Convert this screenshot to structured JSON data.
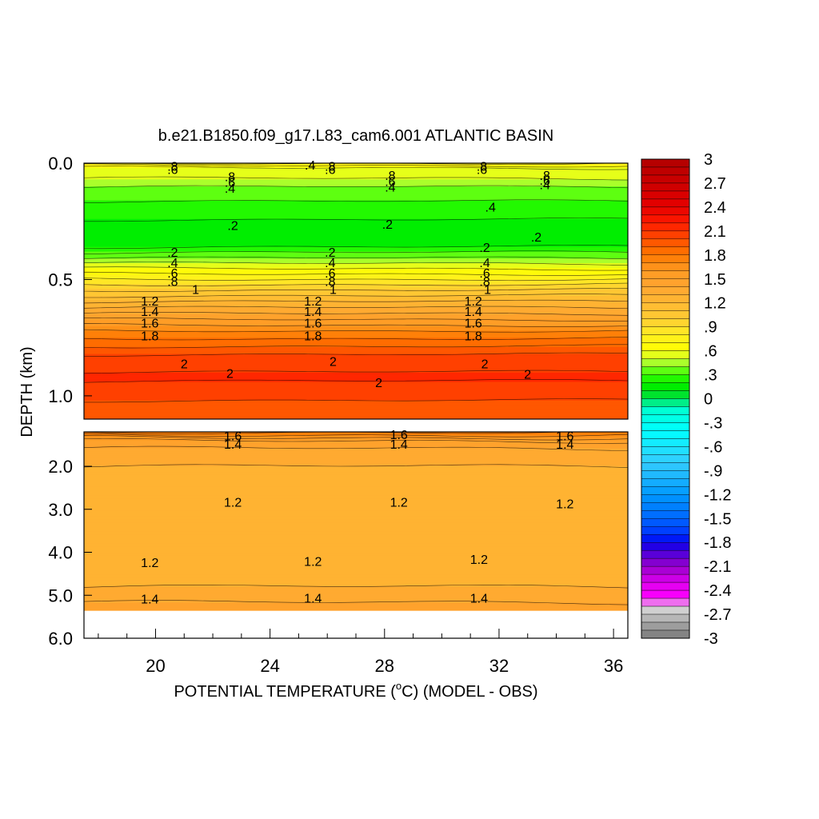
{
  "chart_data": {
    "type": "heatmap",
    "title": "b.e21.B1850.f09_g17.L83_cam6.001 ATLANTIC BASIN",
    "xlabel_prefix": "POTENTIAL TEMPERATURE (",
    "xlabel_degree": "o",
    "xlabel_suffix": "C) (MODEL - OBS)",
    "ylabel": "DEPTH (km)",
    "xlim": [
      17.5,
      36.5
    ],
    "x_ticks": [
      20,
      24,
      28,
      32,
      36
    ],
    "x_tick_labels": [
      "20",
      "24",
      "28",
      "32",
      "36"
    ],
    "upper_panel": {
      "ylim": [
        0.0,
        1.1
      ],
      "y_ticks": [
        0.0,
        0.5,
        1.0
      ],
      "y_tick_labels": [
        "0.0",
        "0.5",
        "1.0"
      ]
    },
    "lower_panel": {
      "ylim": [
        1.2,
        6.0
      ],
      "y_ticks": [
        2.0,
        3.0,
        4.0,
        5.0,
        6.0
      ],
      "y_tick_labels": [
        "2.0",
        "3.0",
        "4.0",
        "5.0",
        "6.0"
      ],
      "data_bottom_km": 5.35
    },
    "profile": [
      {
        "depth": 0.0,
        "value": 0.8
      },
      {
        "depth": 0.02,
        "value": 0.6
      },
      {
        "depth": 0.05,
        "value": 0.55
      },
      {
        "depth": 0.09,
        "value": 0.42
      },
      {
        "depth": 0.15,
        "value": 0.32
      },
      {
        "depth": 0.22,
        "value": 0.22
      },
      {
        "depth": 0.3,
        "value": 0.15
      },
      {
        "depth": 0.36,
        "value": 0.2
      },
      {
        "depth": 0.42,
        "value": 0.45
      },
      {
        "depth": 0.48,
        "value": 0.72
      },
      {
        "depth": 0.54,
        "value": 0.98
      },
      {
        "depth": 0.6,
        "value": 1.22
      },
      {
        "depth": 0.66,
        "value": 1.45
      },
      {
        "depth": 0.72,
        "value": 1.7
      },
      {
        "depth": 0.78,
        "value": 1.88
      },
      {
        "depth": 0.84,
        "value": 2.05
      },
      {
        "depth": 0.92,
        "value": 2.12
      },
      {
        "depth": 1.0,
        "value": 2.02
      },
      {
        "depth": 1.1,
        "value": 1.92
      },
      {
        "depth": 1.22,
        "value": 1.78
      },
      {
        "depth": 1.32,
        "value": 1.62
      },
      {
        "depth": 1.45,
        "value": 1.45
      },
      {
        "depth": 1.8,
        "value": 1.32
      },
      {
        "depth": 2.8,
        "value": 1.22
      },
      {
        "depth": 4.2,
        "value": 1.2
      },
      {
        "depth": 4.8,
        "value": 1.3
      },
      {
        "depth": 5.35,
        "value": 1.45
      }
    ],
    "contour_labels": [
      {
        "text": ".8",
        "x": 20.6,
        "depth": 0.015,
        "panel": "upper"
      },
      {
        "text": ".6",
        "x": 20.6,
        "depth": 0.03,
        "panel": "upper"
      },
      {
        "text": ".4",
        "x": 25.4,
        "depth": 0.01,
        "panel": "upper"
      },
      {
        "text": ".8",
        "x": 26.1,
        "depth": 0.015,
        "panel": "upper"
      },
      {
        "text": ".6",
        "x": 26.1,
        "depth": 0.03,
        "panel": "upper"
      },
      {
        "text": ".8",
        "x": 31.4,
        "depth": 0.015,
        "panel": "upper"
      },
      {
        "text": ".6",
        "x": 31.4,
        "depth": 0.03,
        "panel": "upper"
      },
      {
        "text": ".8",
        "x": 22.6,
        "depth": 0.06,
        "panel": "upper"
      },
      {
        "text": ".6",
        "x": 22.6,
        "depth": 0.085,
        "panel": "upper"
      },
      {
        "text": ".4",
        "x": 22.6,
        "depth": 0.11,
        "panel": "upper"
      },
      {
        "text": ".8",
        "x": 28.2,
        "depth": 0.055,
        "panel": "upper"
      },
      {
        "text": ".6",
        "x": 28.2,
        "depth": 0.08,
        "panel": "upper"
      },
      {
        "text": ".4",
        "x": 28.2,
        "depth": 0.105,
        "panel": "upper"
      },
      {
        "text": ".8",
        "x": 33.6,
        "depth": 0.055,
        "panel": "upper"
      },
      {
        "text": ".6",
        "x": 33.6,
        "depth": 0.075,
        "panel": "upper"
      },
      {
        "text": ".4",
        "x": 33.6,
        "depth": 0.095,
        "panel": "upper"
      },
      {
        "text": ".4",
        "x": 31.7,
        "depth": 0.19,
        "panel": "upper"
      },
      {
        "text": ".2",
        "x": 22.7,
        "depth": 0.27,
        "panel": "upper"
      },
      {
        "text": ".2",
        "x": 28.1,
        "depth": 0.265,
        "panel": "upper"
      },
      {
        "text": ".2",
        "x": 33.3,
        "depth": 0.32,
        "panel": "upper"
      },
      {
        "text": ".2",
        "x": 20.6,
        "depth": 0.385,
        "panel": "upper"
      },
      {
        "text": ".2",
        "x": 26.1,
        "depth": 0.385,
        "panel": "upper"
      },
      {
        "text": ".2",
        "x": 31.5,
        "depth": 0.365,
        "panel": "upper"
      },
      {
        "text": ".4",
        "x": 20.6,
        "depth": 0.43,
        "panel": "upper"
      },
      {
        "text": ".4",
        "x": 26.1,
        "depth": 0.43,
        "panel": "upper"
      },
      {
        "text": ".4",
        "x": 31.5,
        "depth": 0.43,
        "panel": "upper"
      },
      {
        "text": ".6",
        "x": 20.6,
        "depth": 0.475,
        "panel": "upper"
      },
      {
        "text": ".6",
        "x": 26.1,
        "depth": 0.475,
        "panel": "upper"
      },
      {
        "text": ".6",
        "x": 31.5,
        "depth": 0.475,
        "panel": "upper"
      },
      {
        "text": ".8",
        "x": 20.6,
        "depth": 0.51,
        "panel": "upper"
      },
      {
        "text": ".8",
        "x": 26.1,
        "depth": 0.51,
        "panel": "upper"
      },
      {
        "text": ".8",
        "x": 31.5,
        "depth": 0.51,
        "panel": "upper"
      },
      {
        "text": "1",
        "x": 21.4,
        "depth": 0.545,
        "panel": "upper"
      },
      {
        "text": "1",
        "x": 26.2,
        "depth": 0.545,
        "panel": "upper"
      },
      {
        "text": "1",
        "x": 31.6,
        "depth": 0.545,
        "panel": "upper"
      },
      {
        "text": "1.2",
        "x": 19.8,
        "depth": 0.595,
        "panel": "upper"
      },
      {
        "text": "1.2",
        "x": 25.5,
        "depth": 0.595,
        "panel": "upper"
      },
      {
        "text": "1.2",
        "x": 31.1,
        "depth": 0.595,
        "panel": "upper"
      },
      {
        "text": "1.4",
        "x": 19.8,
        "depth": 0.64,
        "panel": "upper"
      },
      {
        "text": "1.4",
        "x": 25.5,
        "depth": 0.64,
        "panel": "upper"
      },
      {
        "text": "1.4",
        "x": 31.1,
        "depth": 0.64,
        "panel": "upper"
      },
      {
        "text": "1.6",
        "x": 19.8,
        "depth": 0.69,
        "panel": "upper"
      },
      {
        "text": "1.6",
        "x": 25.5,
        "depth": 0.69,
        "panel": "upper"
      },
      {
        "text": "1.6",
        "x": 31.1,
        "depth": 0.69,
        "panel": "upper"
      },
      {
        "text": "1.8",
        "x": 19.8,
        "depth": 0.745,
        "panel": "upper"
      },
      {
        "text": "1.8",
        "x": 25.5,
        "depth": 0.745,
        "panel": "upper"
      },
      {
        "text": "1.8",
        "x": 31.1,
        "depth": 0.745,
        "panel": "upper"
      },
      {
        "text": "2",
        "x": 21.0,
        "depth": 0.865,
        "panel": "upper"
      },
      {
        "text": "2",
        "x": 22.6,
        "depth": 0.905,
        "panel": "upper"
      },
      {
        "text": "2",
        "x": 26.2,
        "depth": 0.855,
        "panel": "upper"
      },
      {
        "text": "2",
        "x": 27.8,
        "depth": 0.945,
        "panel": "upper"
      },
      {
        "text": "2",
        "x": 31.5,
        "depth": 0.865,
        "panel": "upper"
      },
      {
        "text": "2",
        "x": 33.0,
        "depth": 0.91,
        "panel": "upper"
      },
      {
        "text": "1.6",
        "x": 22.7,
        "depth": 1.3,
        "panel": "lower"
      },
      {
        "text": "1.4",
        "x": 22.7,
        "depth": 1.5,
        "panel": "lower"
      },
      {
        "text": "1.6",
        "x": 28.5,
        "depth": 1.27,
        "panel": "lower"
      },
      {
        "text": "1.4",
        "x": 28.5,
        "depth": 1.5,
        "panel": "lower"
      },
      {
        "text": "1.6",
        "x": 34.3,
        "depth": 1.3,
        "panel": "lower"
      },
      {
        "text": "1.4",
        "x": 34.3,
        "depth": 1.5,
        "panel": "lower"
      },
      {
        "text": "1.2",
        "x": 22.7,
        "depth": 2.85,
        "panel": "lower"
      },
      {
        "text": "1.2",
        "x": 28.5,
        "depth": 2.85,
        "panel": "lower"
      },
      {
        "text": "1.2",
        "x": 34.3,
        "depth": 2.88,
        "panel": "lower"
      },
      {
        "text": "1.2",
        "x": 19.8,
        "depth": 4.25,
        "panel": "lower"
      },
      {
        "text": "1.2",
        "x": 25.5,
        "depth": 4.22,
        "panel": "lower"
      },
      {
        "text": "1.2",
        "x": 31.3,
        "depth": 4.18,
        "panel": "lower"
      },
      {
        "text": "1.4",
        "x": 19.8,
        "depth": 5.1,
        "panel": "lower"
      },
      {
        "text": "1.4",
        "x": 25.5,
        "depth": 5.08,
        "panel": "lower"
      },
      {
        "text": "1.4",
        "x": 31.3,
        "depth": 5.08,
        "panel": "lower"
      }
    ],
    "colorbar": {
      "min": -3,
      "max": 3,
      "step": 0.1,
      "tick_values": [
        3,
        2.7,
        2.4,
        2.1,
        1.8,
        1.5,
        1.2,
        0.9,
        0.6,
        0.3,
        0,
        -0.3,
        -0.6,
        -0.9,
        -1.2,
        -1.5,
        -1.8,
        -2.1,
        -2.4,
        -2.7,
        -3
      ],
      "tick_labels": [
        "3",
        "2.7",
        "2.4",
        "2.1",
        "1.8",
        "1.5",
        "1.2",
        ".9",
        ".6",
        ".3",
        "0",
        "-.3",
        "-.6",
        "-.9",
        "-1.2",
        "-1.5",
        "-1.8",
        "-2.1",
        "-2.4",
        "-2.7",
        "-3"
      ],
      "color_stops": [
        {
          "v": 3.0,
          "c": "#b20000"
        },
        {
          "v": 2.7,
          "c": "#cc0000"
        },
        {
          "v": 2.4,
          "c": "#e60000"
        },
        {
          "v": 2.2,
          "c": "#ff1a00"
        },
        {
          "v": 2.0,
          "c": "#ff4d00"
        },
        {
          "v": 1.8,
          "c": "#ff7700"
        },
        {
          "v": 1.6,
          "c": "#ff9a22"
        },
        {
          "v": 1.4,
          "c": "#ffa530"
        },
        {
          "v": 1.2,
          "c": "#ffb833"
        },
        {
          "v": 1.0,
          "c": "#ffcc33"
        },
        {
          "v": 0.8,
          "c": "#ffee22"
        },
        {
          "v": 0.6,
          "c": "#ffff00"
        },
        {
          "v": 0.5,
          "c": "#ccff33"
        },
        {
          "v": 0.4,
          "c": "#88ff22"
        },
        {
          "v": 0.3,
          "c": "#33ff00"
        },
        {
          "v": 0.15,
          "c": "#00ee00"
        },
        {
          "v": 0.0,
          "c": "#00dd44"
        },
        {
          "v": -0.1,
          "c": "#00ffcc"
        },
        {
          "v": -0.4,
          "c": "#00ffff"
        },
        {
          "v": -0.8,
          "c": "#33ccff"
        },
        {
          "v": -1.2,
          "c": "#0099ff"
        },
        {
          "v": -1.5,
          "c": "#0066ff"
        },
        {
          "v": -1.7,
          "c": "#0033ff"
        },
        {
          "v": -1.8,
          "c": "#0000ee"
        },
        {
          "v": -1.9,
          "c": "#4400dd"
        },
        {
          "v": -2.1,
          "c": "#9900cc"
        },
        {
          "v": -2.3,
          "c": "#dd00ee"
        },
        {
          "v": -2.5,
          "c": "#ff00ff"
        },
        {
          "v": -2.6,
          "c": "#dddddd"
        },
        {
          "v": -2.8,
          "c": "#aaaaaa"
        },
        {
          "v": -3.0,
          "c": "#777777"
        }
      ]
    }
  }
}
